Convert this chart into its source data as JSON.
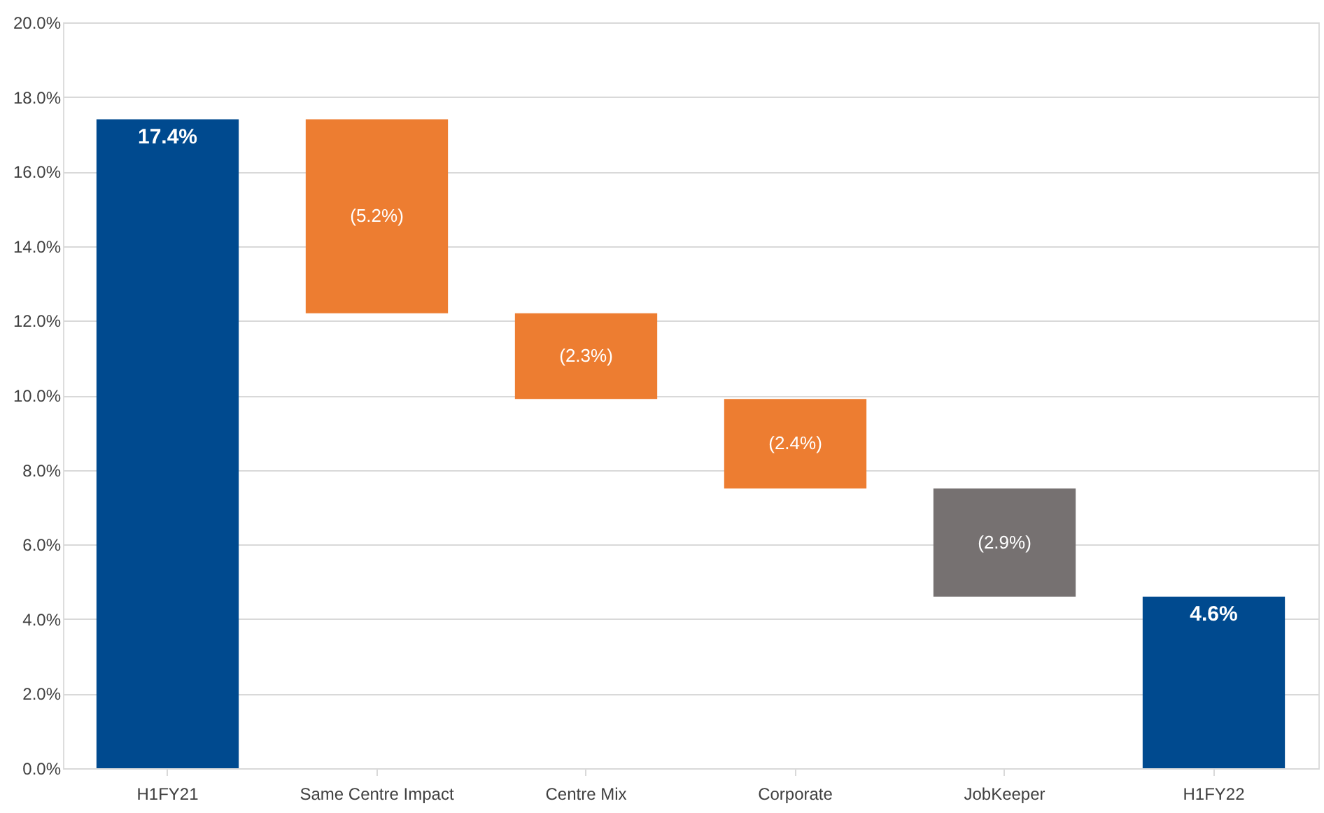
{
  "chart_data": {
    "type": "bar",
    "categories": [
      "H1FY21",
      "Same Centre Impact",
      "Centre Mix",
      "Corporate",
      "JobKeeper",
      "H1FY22"
    ],
    "values": [
      17.4,
      -5.2,
      -2.3,
      -2.4,
      -2.9,
      4.6
    ],
    "base": [
      0,
      17.4,
      12.2,
      9.9,
      7.5,
      0
    ],
    "colors": [
      "#004a8f",
      "#ed7d31",
      "#ed7d31",
      "#ed7d31",
      "#767171",
      "#004a8f"
    ],
    "value_labels": [
      "17.4%",
      "(5.2%)",
      "(2.3%)",
      "(2.4%)",
      "(2.9%)",
      "4.6%"
    ],
    "ylim": [
      0,
      20
    ],
    "yticks": [
      {
        "value": 0,
        "label": "0.0%"
      },
      {
        "value": 2,
        "label": "2.0%"
      },
      {
        "value": 4,
        "label": "4.0%"
      },
      {
        "value": 6,
        "label": "6.0%"
      },
      {
        "value": 8,
        "label": "8.0%"
      },
      {
        "value": 10,
        "label": "10.0%"
      },
      {
        "value": 12,
        "label": "12.0%"
      },
      {
        "value": 14,
        "label": "14.0%"
      },
      {
        "value": 16,
        "label": "16.0%"
      },
      {
        "value": 18,
        "label": "18.0%"
      },
      {
        "value": 20,
        "label": "20.0%"
      }
    ],
    "grid": "y"
  }
}
